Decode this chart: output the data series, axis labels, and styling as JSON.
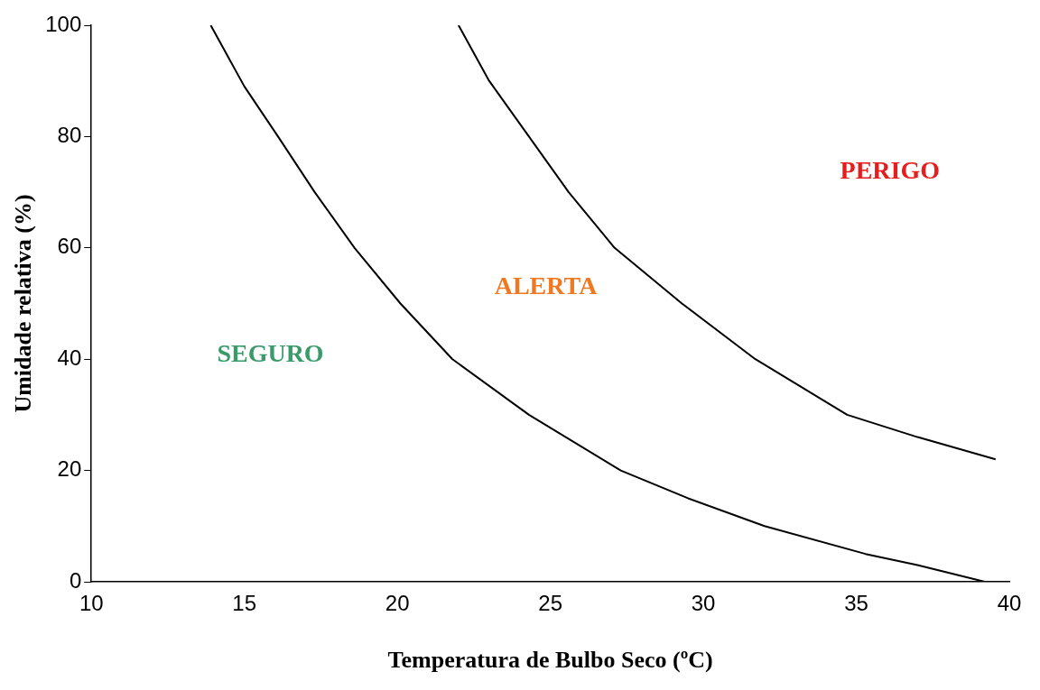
{
  "chart_data": {
    "type": "line",
    "xlabel": "Temperatura de Bulbo Seco (ºC)",
    "ylabel": "Umidade relativa (%)",
    "xlim": [
      10,
      40
    ],
    "xticks": [
      10,
      15,
      20,
      25,
      30,
      35,
      40
    ],
    "ylim": [
      0,
      100
    ],
    "yticks": [
      0,
      20,
      40,
      60,
      80,
      100
    ],
    "grid": false,
    "series": [
      {
        "color": "#000000",
        "x": [
          13.9,
          15.0,
          16.1,
          17.3,
          18.6,
          20.1,
          21.8,
          24.3,
          27.3,
          29.5,
          32.0,
          35.3,
          37.0,
          39.2
        ],
        "values": [
          100,
          89,
          80,
          70,
          60,
          50,
          40,
          30,
          20,
          15,
          10,
          5,
          3,
          0
        ]
      },
      {
        "color": "#000000",
        "x": [
          22.0,
          23.0,
          24.3,
          25.6,
          27.1,
          29.3,
          31.7,
          34.7,
          37.0,
          39.55
        ],
        "values": [
          100,
          90,
          80,
          70,
          60,
          50,
          40,
          30,
          26,
          22
        ]
      }
    ],
    "annotations": [
      "SEGURO",
      "ALERTA",
      "PERIGO"
    ]
  }
}
